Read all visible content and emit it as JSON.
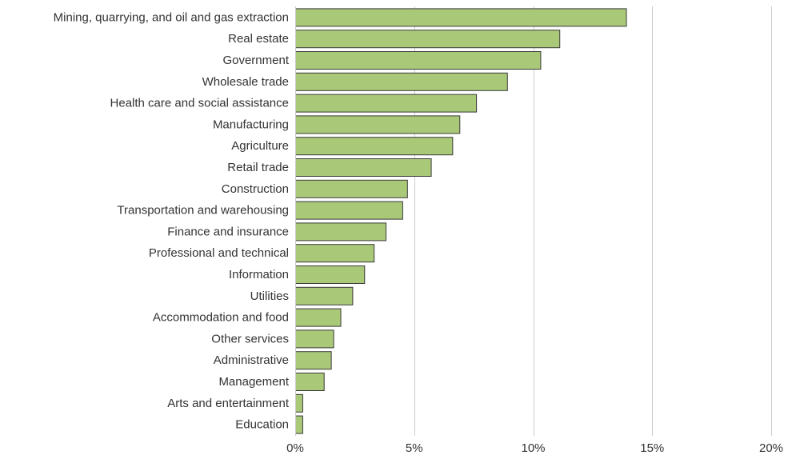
{
  "chart_data": {
    "type": "bar",
    "orientation": "horizontal",
    "title": "",
    "xlabel": "",
    "ylabel": "",
    "categories": [
      "Mining, quarrying, and oil and gas extraction",
      "Real estate",
      "Government",
      "Wholesale trade",
      "Health care and social assistance",
      "Manufacturing",
      "Agriculture",
      "Retail trade",
      "Construction",
      "Transportation and warehousing",
      "Finance and insurance",
      "Professional and technical",
      "Information",
      "Utilities",
      "Accommodation and food",
      "Other services",
      "Administrative",
      "Management",
      "Arts and entertainment",
      "Education"
    ],
    "values": [
      13.9,
      11.1,
      10.3,
      8.9,
      7.6,
      6.9,
      6.6,
      5.7,
      4.7,
      4.5,
      3.8,
      3.3,
      2.9,
      2.4,
      1.9,
      1.6,
      1.5,
      1.2,
      0.3,
      0.3
    ],
    "xlim": [
      0,
      20
    ],
    "xticks": [
      0,
      5,
      10,
      15,
      20
    ],
    "xtick_labels": [
      "0%",
      "5%",
      "10%",
      "15%",
      "20%"
    ],
    "grid": true,
    "legend": "none",
    "colors": {
      "bar_fill": "#a9c878",
      "bar_stroke": "#3a3a3a",
      "grid": "#cccccc",
      "text": "#333333"
    }
  }
}
